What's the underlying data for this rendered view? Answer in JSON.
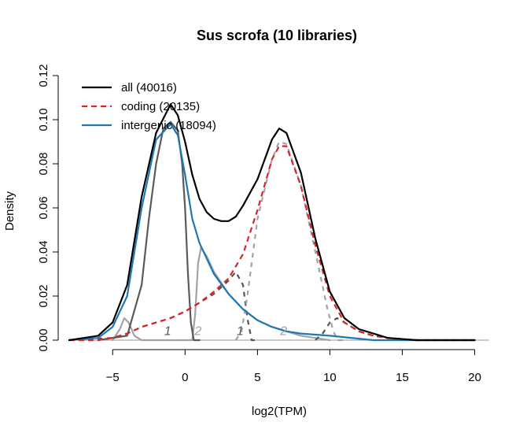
{
  "chart_data": {
    "type": "line",
    "title": "Sus scrofa (10 libraries)",
    "xlabel": "log2(TPM)",
    "ylabel": "Density",
    "xlim": [
      -8,
      21
    ],
    "ylim": [
      0,
      0.125
    ],
    "x_ticks": [
      -5,
      0,
      5,
      10,
      15,
      20
    ],
    "x_tick_labels": [
      "−5",
      "0",
      "5",
      "10",
      "15",
      "20"
    ],
    "y_ticks": [
      0,
      0.02,
      0.04,
      0.06,
      0.08,
      0.1,
      0.12
    ],
    "y_tick_labels": [
      "0.00",
      "0.02",
      "0.04",
      "0.06",
      "0.08",
      "0.10",
      "0.12"
    ],
    "legend_position": "top-left",
    "legend": [
      {
        "label": "all (40016)",
        "color": "#000000",
        "style": "solid"
      },
      {
        "label": "coding (20135)",
        "color": "#d62728",
        "style": "dashed"
      },
      {
        "label": "intergenic (18094)",
        "color": "#1f77b4",
        "style": "solid"
      }
    ],
    "series": [
      {
        "key": "all",
        "color": "#000000",
        "dash": "",
        "width": 2.2,
        "points": [
          [
            -8,
            0.0
          ],
          [
            -6,
            0.002
          ],
          [
            -5,
            0.008
          ],
          [
            -4,
            0.025
          ],
          [
            -3,
            0.065
          ],
          [
            -2,
            0.094
          ],
          [
            -1,
            0.107
          ],
          [
            -0.5,
            0.102
          ],
          [
            0,
            0.09
          ],
          [
            0.5,
            0.075
          ],
          [
            1,
            0.064
          ],
          [
            1.5,
            0.058
          ],
          [
            2,
            0.055
          ],
          [
            2.5,
            0.054
          ],
          [
            3,
            0.054
          ],
          [
            3.5,
            0.056
          ],
          [
            4,
            0.061
          ],
          [
            5,
            0.073
          ],
          [
            6,
            0.091
          ],
          [
            6.5,
            0.096
          ],
          [
            7,
            0.094
          ],
          [
            8,
            0.076
          ],
          [
            9,
            0.046
          ],
          [
            10,
            0.022
          ],
          [
            11,
            0.01
          ],
          [
            12,
            0.005
          ],
          [
            13,
            0.003
          ],
          [
            14,
            0.001
          ],
          [
            16,
            0.0
          ],
          [
            20,
            0.0
          ]
        ]
      },
      {
        "key": "intergenic",
        "color": "#1f77b4",
        "dash": "",
        "width": 2.2,
        "points": [
          [
            -8,
            0.0
          ],
          [
            -6,
            0.001
          ],
          [
            -5,
            0.006
          ],
          [
            -4,
            0.02
          ],
          [
            -3,
            0.06
          ],
          [
            -2,
            0.091
          ],
          [
            -1,
            0.098
          ],
          [
            -0.5,
            0.093
          ],
          [
            0,
            0.075
          ],
          [
            0.5,
            0.055
          ],
          [
            1,
            0.044
          ],
          [
            2,
            0.03
          ],
          [
            3,
            0.021
          ],
          [
            4,
            0.014
          ],
          [
            5,
            0.009
          ],
          [
            6,
            0.006
          ],
          [
            7,
            0.004
          ],
          [
            8,
            0.003
          ],
          [
            10,
            0.002
          ],
          [
            13,
            0.0
          ],
          [
            20,
            0.0
          ]
        ]
      },
      {
        "key": "coding",
        "color": "#d62728",
        "dash": "7,5",
        "width": 2.2,
        "points": [
          [
            -8,
            0.0
          ],
          [
            -6,
            0.0
          ],
          [
            -5,
            0.001
          ],
          [
            -4,
            0.003
          ],
          [
            -3,
            0.006
          ],
          [
            -2,
            0.008
          ],
          [
            -1,
            0.01
          ],
          [
            0,
            0.013
          ],
          [
            1,
            0.017
          ],
          [
            2,
            0.022
          ],
          [
            3,
            0.028
          ],
          [
            4,
            0.039
          ],
          [
            5,
            0.059
          ],
          [
            6,
            0.082
          ],
          [
            6.5,
            0.088
          ],
          [
            7,
            0.088
          ],
          [
            8,
            0.07
          ],
          [
            9,
            0.043
          ],
          [
            10,
            0.02
          ],
          [
            11,
            0.008
          ],
          [
            12,
            0.004
          ],
          [
            13,
            0.002
          ],
          [
            14,
            0.001
          ],
          [
            16,
            0.0
          ],
          [
            20,
            0.0
          ]
        ]
      },
      {
        "key": "intergenic-component-1",
        "color": "#5a5a5a",
        "dash": "",
        "width": 2.2,
        "points": [
          [
            -6,
            0.0
          ],
          [
            -4,
            0.002
          ],
          [
            -3,
            0.025
          ],
          [
            -2.5,
            0.055
          ],
          [
            -2,
            0.08
          ],
          [
            -1.5,
            0.096
          ],
          [
            -1,
            0.099
          ],
          [
            -0.5,
            0.095
          ],
          [
            -0.2,
            0.08
          ],
          [
            0,
            0.06
          ],
          [
            0.2,
            0.03
          ],
          [
            0.4,
            0.008
          ],
          [
            0.6,
            0.0
          ],
          [
            1,
            0.0
          ]
        ]
      },
      {
        "key": "intergenic-component-0",
        "color": "#9ea3a8",
        "dash": "",
        "width": 2.2,
        "points": [
          [
            -5,
            0.0
          ],
          [
            -4.5,
            0.005
          ],
          [
            -4.2,
            0.01
          ],
          [
            -3.9,
            0.008
          ],
          [
            -3.5,
            0.002
          ],
          [
            -3,
            0.0
          ],
          [
            0.5,
            0.0
          ],
          [
            0.7,
            0.012
          ],
          [
            0.9,
            0.035
          ],
          [
            1.1,
            0.042
          ],
          [
            1.5,
            0.038
          ],
          [
            2,
            0.031
          ],
          [
            3,
            0.021
          ],
          [
            4,
            0.014
          ],
          [
            5,
            0.009
          ],
          [
            6,
            0.006
          ],
          [
            7,
            0.004
          ],
          [
            8,
            0.002
          ],
          [
            9,
            0.001
          ],
          [
            10,
            0.0
          ]
        ]
      },
      {
        "key": "coding-component-1",
        "color": "#555555",
        "dash": "6,6",
        "width": 2.2,
        "points": [
          [
            -8,
            0.0
          ],
          [
            -5,
            0.001
          ],
          [
            -4,
            0.003
          ],
          [
            -3,
            0.006
          ],
          [
            -2,
            0.008
          ],
          [
            -1,
            0.01
          ],
          [
            0,
            0.013
          ],
          [
            1,
            0.017
          ],
          [
            2,
            0.021
          ],
          [
            3,
            0.027
          ],
          [
            3.5,
            0.031
          ],
          [
            4,
            0.025
          ],
          [
            4.3,
            0.01
          ],
          [
            4.6,
            0.0
          ],
          [
            5,
            0.0
          ]
        ]
      },
      {
        "key": "coding-component-2",
        "color": "#9ea3a8",
        "dash": "6,6",
        "width": 2.2,
        "points": [
          [
            3.5,
            0.0
          ],
          [
            3.9,
            0.004
          ],
          [
            4.3,
            0.02
          ],
          [
            5,
            0.055
          ],
          [
            6,
            0.082
          ],
          [
            6.5,
            0.09
          ],
          [
            7,
            0.089
          ],
          [
            8,
            0.07
          ],
          [
            9,
            0.04
          ],
          [
            9.8,
            0.015
          ],
          [
            10.2,
            0.005
          ],
          [
            10.5,
            0.0
          ],
          [
            11,
            0.0
          ]
        ]
      },
      {
        "key": "coding-component-3",
        "color": "#555555",
        "dash": "6,6",
        "width": 2.2,
        "points": [
          [
            9,
            0.0
          ],
          [
            9.5,
            0.003
          ],
          [
            10,
            0.008
          ],
          [
            10.5,
            0.01
          ],
          [
            11,
            0.008
          ],
          [
            12,
            0.004
          ],
          [
            13,
            0.002
          ],
          [
            14,
            0.001
          ],
          [
            16,
            0.0
          ],
          [
            20,
            0.0
          ]
        ]
      }
    ],
    "component_labels": [
      {
        "text": "1",
        "x": -1.2,
        "y": 0.002,
        "color": "#555555"
      },
      {
        "text": "2",
        "x": 0.9,
        "y": 0.002,
        "color": "#9ea3a8"
      },
      {
        "text": "1",
        "x": 3.8,
        "y": 0.002,
        "color": "#555555"
      },
      {
        "text": "2",
        "x": 6.8,
        "y": 0.002,
        "color": "#9ea3a8"
      }
    ]
  }
}
